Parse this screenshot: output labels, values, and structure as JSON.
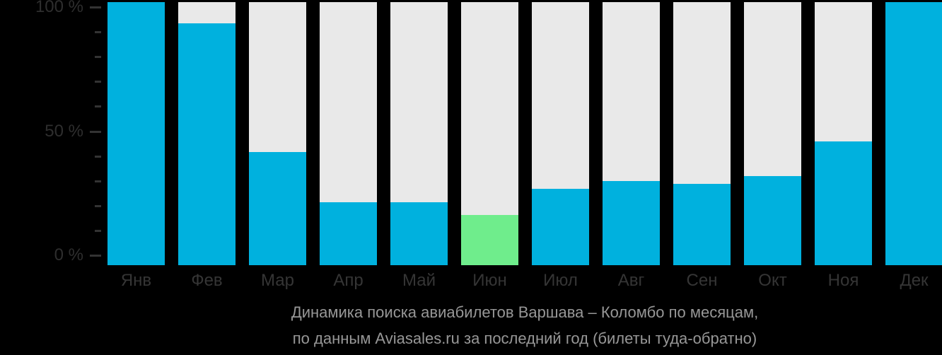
{
  "chart_data": {
    "type": "bar",
    "categories": [
      "Янв",
      "Фев",
      "Мар",
      "Апр",
      "Май",
      "Июн",
      "Июл",
      "Авг",
      "Сен",
      "Окт",
      "Ноя",
      "Дек"
    ],
    "values": [
      100,
      92,
      43,
      24,
      24,
      19,
      29,
      32,
      31,
      34,
      47,
      100
    ],
    "highlight_index": 5,
    "title": "Динамика поиска авиабилетов Варшава – Коломбо по месяцам,",
    "subtitle": "по данным Aviasales.ru за последний год (билеты туда-обратно)",
    "xlabel": "",
    "ylabel": "",
    "ylim": [
      0,
      100
    ],
    "y_major_ticks": [
      100,
      50,
      0
    ],
    "y_major_tick_labels": [
      "100 %",
      "50 %",
      "0 %"
    ],
    "y_minor_step": 10,
    "grid": false,
    "legend": "none",
    "colors": {
      "bar": "#00b1de",
      "highlight_bar": "#6fed8c",
      "column_background": "#e9e9e9",
      "page_background": "#000000",
      "axis_tick": "#333333",
      "axis_label": "#2e2e2e",
      "month_label": "#353535",
      "caption_text": "#979797"
    }
  }
}
